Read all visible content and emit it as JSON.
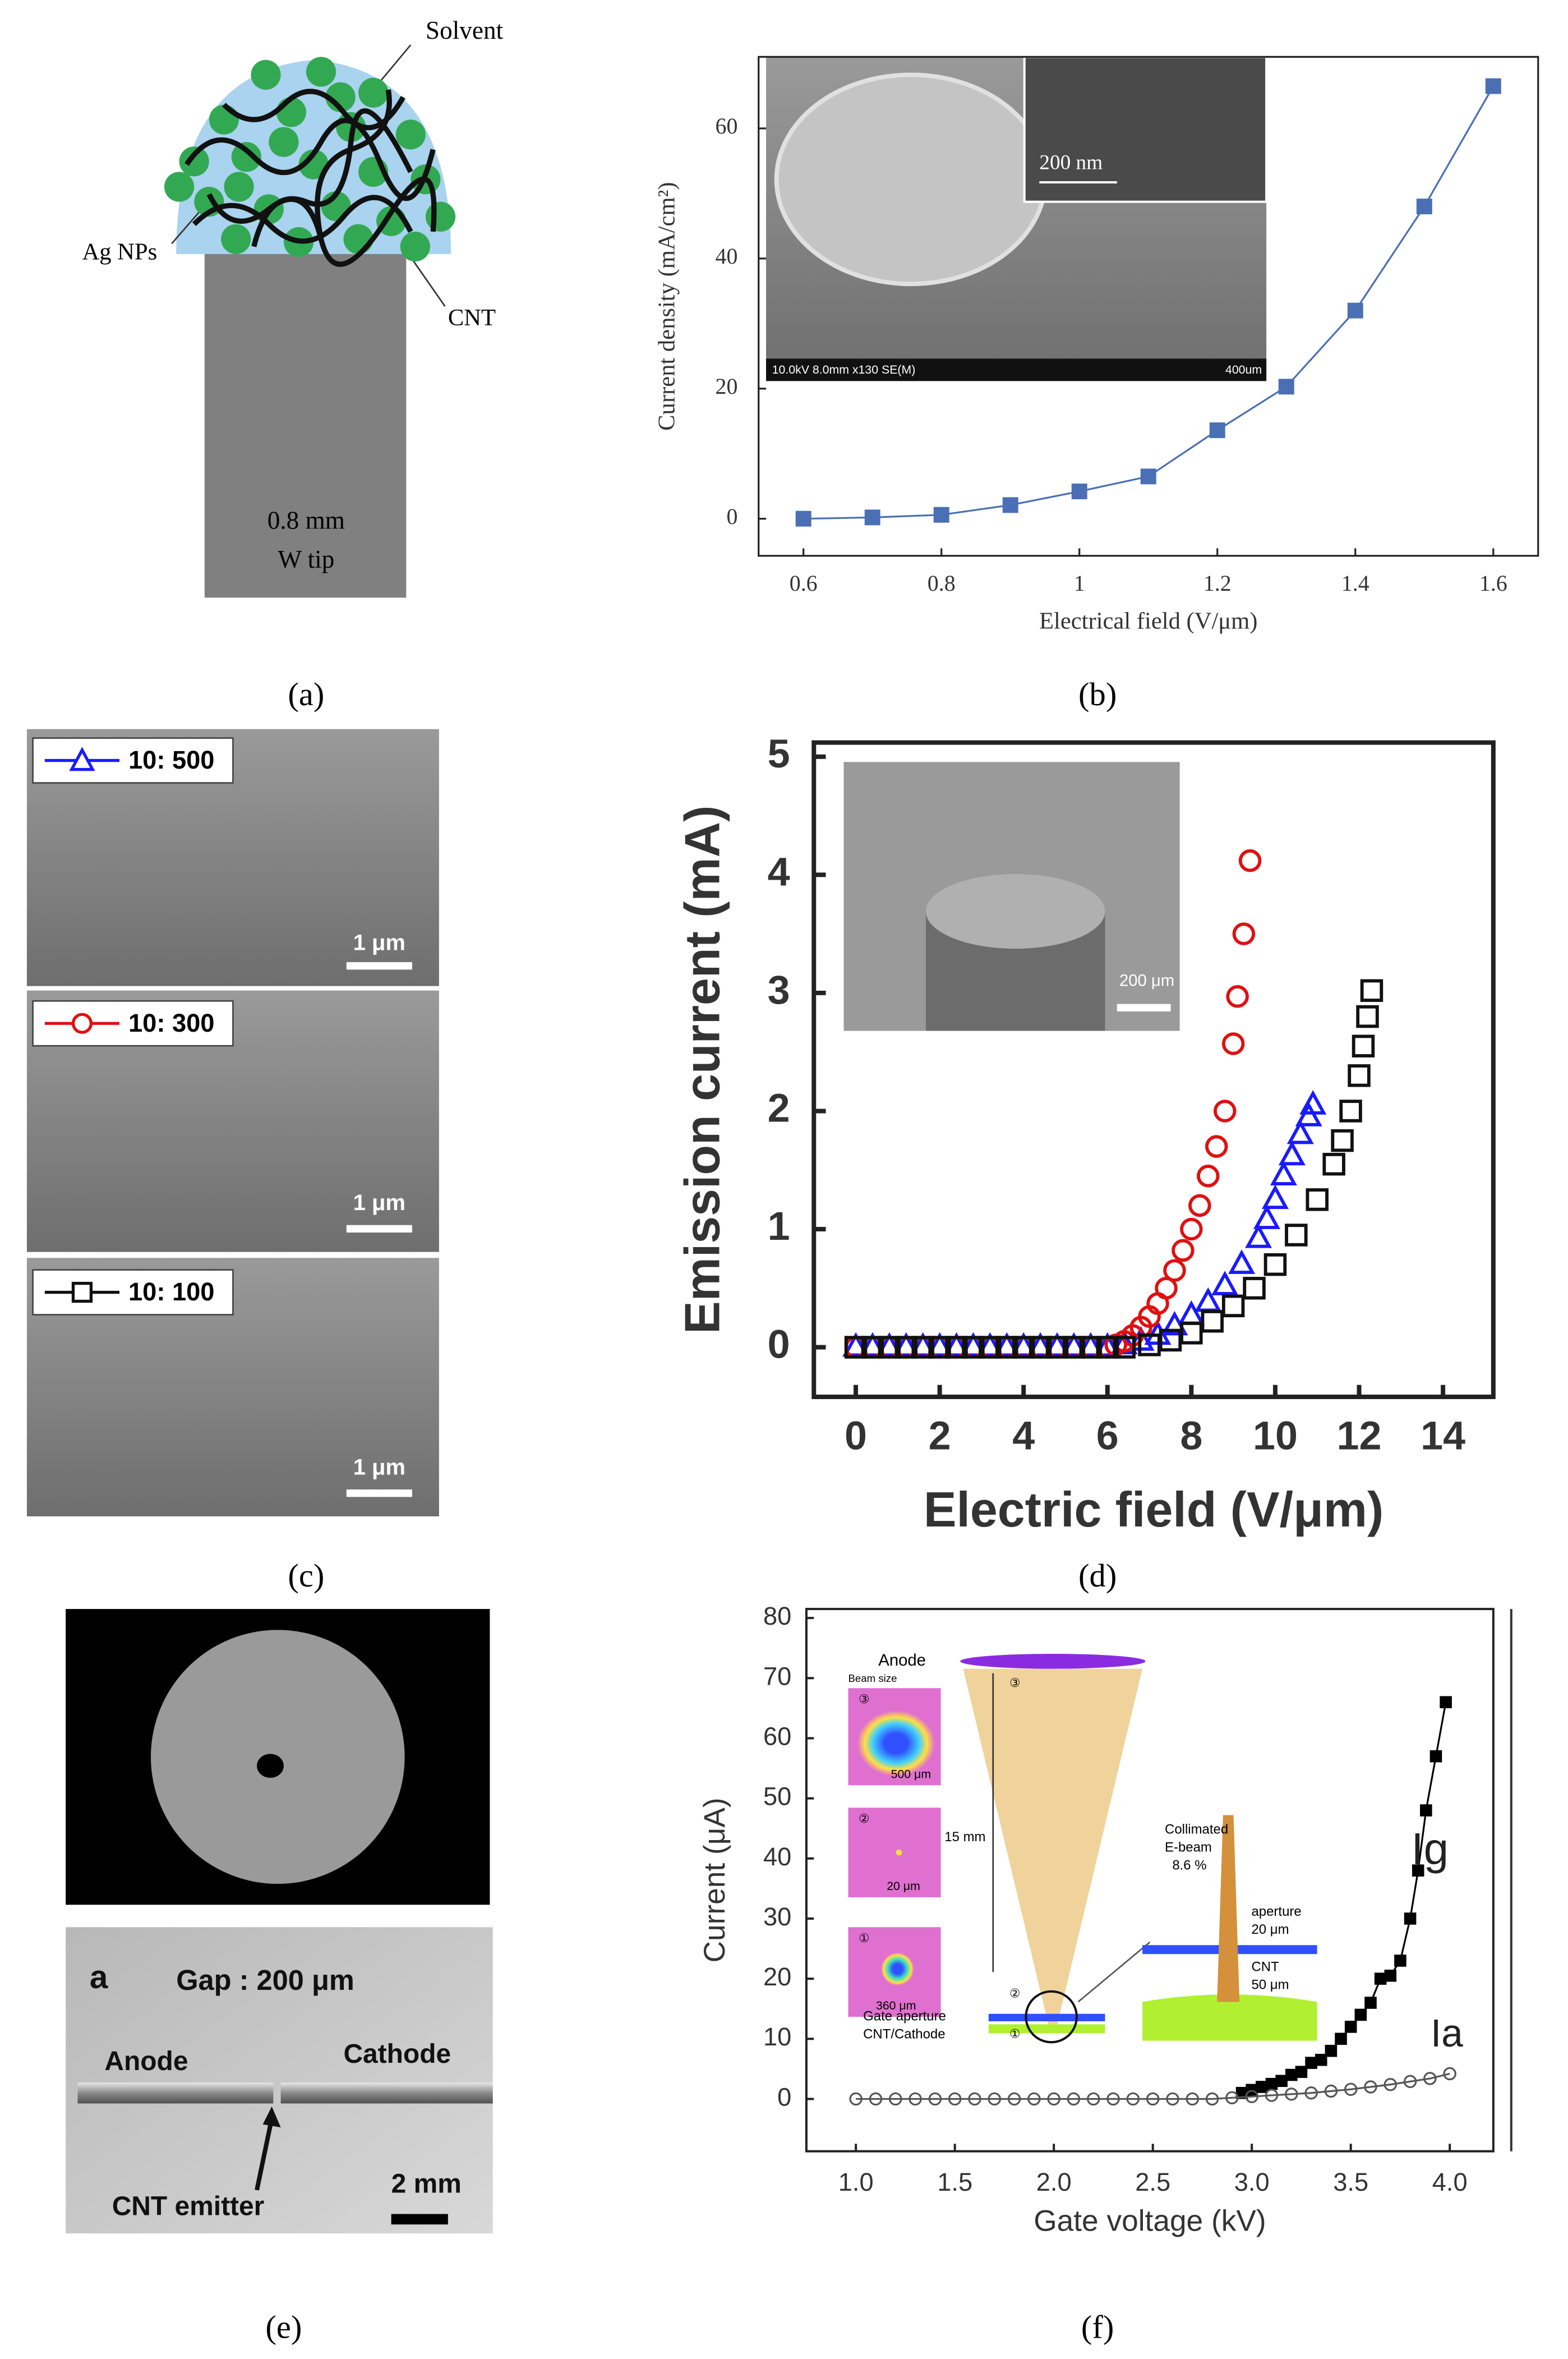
{
  "panels": {
    "a": {
      "solvent": "Solvent",
      "ag_nps": "Ag NPs",
      "cnt": "CNT",
      "tip_size": "0.8 mm",
      "tip_material": "W tip"
    },
    "c": {
      "scale_bars": [
        "1 μm",
        "1 μm",
        "1 μm"
      ]
    },
    "e": {
      "letter": "a",
      "gap": "Gap : 200 μm",
      "anode": "Anode",
      "cathode": "Cathode",
      "emitter": "CNT emitter",
      "scale_bar": "2 mm"
    }
  },
  "captions": [
    "(a)",
    "(b)",
    "(c)",
    "(d)",
    "(e)",
    "(f)"
  ],
  "chart_data": [
    {
      "type": "line",
      "ylabel": "Current density (mA/cm²)",
      "xlabel": "Electrical field (V/μm)",
      "x": [
        0.6,
        0.7,
        0.8,
        0.9,
        1.0,
        1.1,
        1.2,
        1.3,
        1.4,
        1.5,
        1.6
      ],
      "values": [
        0,
        0.2,
        0.6,
        2.1,
        4.2,
        6.5,
        13.6,
        20.3,
        32,
        48,
        66.5
      ],
      "color": "#4a6fb5",
      "marker": "square",
      "open": false,
      "xlim": [
        0.535,
        1.665
      ],
      "ylim": [
        -5.7,
        71
      ],
      "xticks": [
        0.6,
        0.8,
        1,
        1.2,
        1.4,
        1.6
      ],
      "yticks": [
        0,
        20,
        40,
        60
      ],
      "annotations": [
        "200 nm",
        "10.0kV 8.0mm x130 SE(M)",
        "400um"
      ]
    },
    {
      "type": "scatter",
      "ylabel": "Emission current (mA)",
      "xlabel": "Electric field (V/μm)",
      "xlim": [
        -1,
        15.2
      ],
      "ylim": [
        -0.42,
        5.12
      ],
      "xticks": [
        0,
        2,
        4,
        6,
        8,
        10,
        12,
        14
      ],
      "yticks": [
        0,
        1,
        2,
        3,
        4,
        5
      ],
      "series": [
        {
          "name": "10: 500",
          "color": "#1a1aff",
          "marker": "triangle",
          "open": true,
          "x": [
            0,
            0.4,
            0.8,
            1.2,
            1.6,
            2.0,
            2.4,
            2.8,
            3.2,
            3.6,
            4.0,
            4.4,
            4.8,
            5.2,
            5.6,
            6.0,
            6.4,
            6.8,
            7.2,
            7.6,
            8.0,
            8.4,
            8.8,
            9.2,
            9.6,
            9.8,
            10.0,
            10.2,
            10.4,
            10.6,
            10.8,
            10.9
          ],
          "values": [
            0,
            0,
            0,
            0,
            0,
            0,
            0,
            0,
            0,
            0,
            0,
            0,
            0,
            0,
            0,
            0,
            0.02,
            0.05,
            0.1,
            0.18,
            0.27,
            0.38,
            0.52,
            0.7,
            0.92,
            1.08,
            1.25,
            1.45,
            1.62,
            1.8,
            1.95,
            2.05
          ]
        },
        {
          "name": "10: 300",
          "color": "#e01010",
          "marker": "circle",
          "open": true,
          "x": [
            0,
            0.4,
            0.8,
            1.2,
            1.6,
            2.0,
            2.4,
            2.8,
            3.2,
            3.6,
            4.0,
            4.4,
            4.8,
            5.2,
            5.6,
            6.0,
            6.2,
            6.4,
            6.6,
            6.8,
            7.0,
            7.2,
            7.4,
            7.6,
            7.8,
            8.0,
            8.2,
            8.4,
            8.6,
            8.8,
            9.0,
            9.1,
            9.25,
            9.4
          ],
          "values": [
            0,
            0,
            0,
            0,
            0,
            0,
            0,
            0,
            0,
            0,
            0,
            0,
            0,
            0,
            0,
            0,
            0.02,
            0.05,
            0.1,
            0.17,
            0.26,
            0.37,
            0.5,
            0.65,
            0.82,
            1.0,
            1.2,
            1.45,
            1.7,
            2.0,
            2.57,
            2.97,
            3.5,
            4.12
          ]
        },
        {
          "name": "10: 100",
          "color": "#111111",
          "marker": "square",
          "open": true,
          "x": [
            0,
            0.4,
            0.8,
            1.2,
            1.6,
            2.0,
            2.4,
            2.8,
            3.2,
            3.6,
            4.0,
            4.4,
            4.8,
            5.2,
            5.6,
            6.0,
            6.4,
            7.0,
            7.5,
            8.0,
            8.5,
            9.0,
            9.5,
            10.0,
            10.5,
            11.0,
            11.4,
            11.6,
            11.8,
            12.0,
            12.1,
            12.2,
            12.3
          ],
          "values": [
            0,
            0,
            0,
            0,
            0,
            0,
            0,
            0,
            0,
            0,
            0,
            0,
            0,
            0,
            0,
            0,
            0,
            0.02,
            0.06,
            0.12,
            0.22,
            0.35,
            0.5,
            0.7,
            0.95,
            1.25,
            1.55,
            1.75,
            2.0,
            2.3,
            2.55,
            2.8,
            3.02
          ]
        }
      ],
      "annotations": [
        "200 μm"
      ]
    },
    {
      "type": "line",
      "ylabel": "Current (μA)",
      "xlabel": "Gate voltage (kV)",
      "xlim": [
        0.75,
        4.22
      ],
      "ylim": [
        -8.7,
        81.5
      ],
      "xticks": [
        {
          "value": 1,
          "label": "1.0"
        },
        1.5,
        {
          "value": 2,
          "label": "2.0"
        },
        2.5,
        {
          "value": 3,
          "label": "3.0"
        },
        3.5,
        {
          "value": 4,
          "label": "4.0"
        }
      ],
      "yticks": [
        0,
        10,
        20,
        30,
        40,
        50,
        60,
        70,
        80
      ],
      "series": [
        {
          "name": "Ig",
          "color": "#000000",
          "marker": "square",
          "open": false,
          "x": [
            2.95,
            3.0,
            3.05,
            3.1,
            3.15,
            3.2,
            3.25,
            3.3,
            3.35,
            3.4,
            3.45,
            3.5,
            3.55,
            3.6,
            3.65,
            3.7,
            3.75,
            3.8,
            3.84,
            3.88,
            3.93,
            3.98
          ],
          "values": [
            1,
            1.5,
            2,
            2.5,
            3,
            4,
            4.5,
            6,
            6.5,
            8,
            10,
            12,
            14,
            16,
            20,
            20.5,
            23,
            30,
            38,
            48,
            57,
            66
          ]
        },
        {
          "name": "Ia",
          "color": "#555555",
          "marker": "circle",
          "open": true,
          "x": [
            1.0,
            1.1,
            1.2,
            1.3,
            1.4,
            1.5,
            1.6,
            1.7,
            1.8,
            1.9,
            2.0,
            2.1,
            2.2,
            2.3,
            2.4,
            2.5,
            2.6,
            2.7,
            2.8,
            2.9,
            3.0,
            3.1,
            3.2,
            3.3,
            3.4,
            3.5,
            3.6,
            3.7,
            3.8,
            3.9,
            4.0
          ],
          "values": [
            0,
            0,
            0,
            0,
            0,
            0,
            0,
            0,
            0,
            0,
            0,
            0,
            0,
            0,
            0,
            0,
            0,
            0,
            0,
            0.2,
            0.4,
            0.6,
            0.8,
            1.0,
            1.3,
            1.6,
            2.0,
            2.4,
            2.9,
            3.4,
            4.2
          ]
        }
      ],
      "annotations": [
        "Anode",
        "Beam size",
        "③",
        "500 μm",
        "②",
        "20 μm",
        "①",
        "360 μm",
        "15 mm",
        "Collimated",
        "E-beam",
        "8.6 %",
        "aperture",
        "20 μm",
        "CNT",
        "50 μm",
        "Gate aperture",
        "CNT/Cathode",
        "③",
        "②",
        "①"
      ]
    }
  ]
}
